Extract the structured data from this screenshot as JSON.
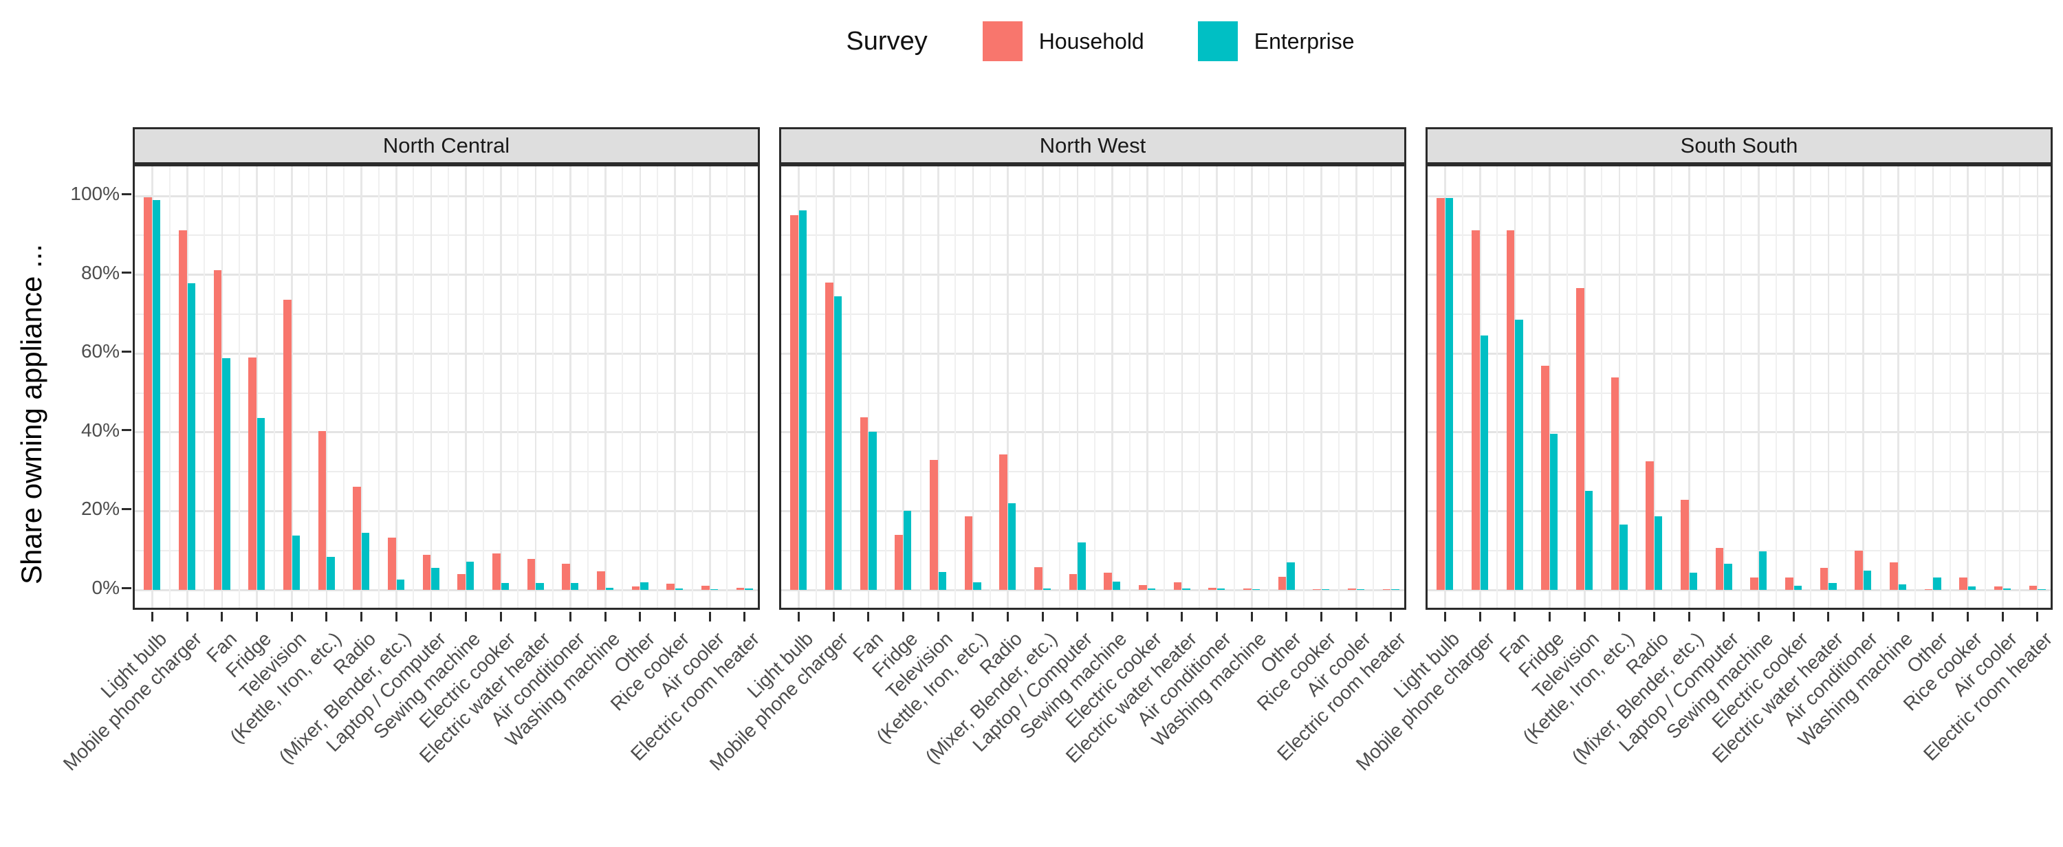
{
  "legend": {
    "title": "Survey",
    "items": [
      {
        "label": "Household",
        "color": "#F8766D"
      },
      {
        "label": "Enterprise",
        "color": "#00BFC4"
      }
    ]
  },
  "y_axis": {
    "title": "Share owning appliance ...",
    "tick_labels": [
      "0%",
      "20%",
      "40%",
      "60%",
      "80%",
      "100%"
    ]
  },
  "colors": {
    "household": "#F8766D",
    "enterprise": "#00BFC4",
    "strip_background": "#DEDEDE",
    "panel_border": "#2b2b2b",
    "gridline": "#e4e4e4",
    "tick_text": "#4d4d4d"
  },
  "chart_data": {
    "type": "bar",
    "grouping": "dodged",
    "grid": "on",
    "legend_position": "top",
    "ylabel": "Share owning appliance ...",
    "ylim": [
      0,
      100
    ],
    "y_tick_values": [
      0,
      20,
      40,
      60,
      80,
      100
    ],
    "y_minor_step": 10,
    "categories": [
      "Light bulb",
      "Mobile phone charger",
      "Fan",
      "Fridge",
      "Television",
      "(Kettle, Iron, etc.)",
      "Radio",
      "(Mixer, Blender, etc.)",
      "Laptop / Computer",
      "Sewing machine",
      "Electric cooker",
      "Electric water heater",
      "Air conditioner",
      "Washing machine",
      "Other",
      "Rice cooker",
      "Air cooler",
      "Electric room heater"
    ],
    "series": [
      {
        "name": "Household",
        "color": "#F8766D"
      },
      {
        "name": "Enterprise",
        "color": "#00BFC4"
      }
    ],
    "facets": [
      {
        "title": "North Central",
        "values": {
          "Household": [
            99.6,
            91.2,
            81.1,
            59.0,
            73.6,
            40.3,
            26.2,
            13.3,
            8.9,
            4.0,
            9.2,
            7.9,
            6.6,
            4.7,
            0.8,
            1.5,
            1.1,
            0.6
          ],
          "Enterprise": [
            99.0,
            77.8,
            58.9,
            43.6,
            13.7,
            8.4,
            14.5,
            2.6,
            5.6,
            7.2,
            1.8,
            1.7,
            1.7,
            0.6,
            1.9,
            0.3,
            0.2,
            0.4
          ]
        }
      },
      {
        "title": "North West",
        "values": {
          "Household": [
            95.1,
            78.0,
            43.8,
            14.0,
            33.0,
            18.6,
            34.4,
            5.8,
            4.0,
            4.3,
            1.2,
            1.9,
            0.6,
            0.4,
            3.4,
            0.2,
            0.3,
            0.2
          ],
          "Enterprise": [
            96.4,
            74.5,
            40.2,
            20.0,
            4.5,
            1.9,
            22.0,
            0.4,
            12.0,
            2.1,
            0.3,
            0.3,
            0.3,
            0.2,
            7.0,
            0.1,
            0.1,
            0.1
          ]
        }
      },
      {
        "title": "South South",
        "values": {
          "Household": [
            99.5,
            91.2,
            91.2,
            56.9,
            76.7,
            54.0,
            32.6,
            22.8,
            10.6,
            3.2,
            3.2,
            5.5,
            10.0,
            6.9,
            0.2,
            3.2,
            0.8,
            1.0
          ],
          "Enterprise": [
            99.5,
            64.5,
            68.5,
            39.7,
            25.2,
            16.6,
            18.7,
            4.4,
            6.6,
            9.8,
            1.0,
            1.7,
            4.8,
            1.4,
            3.2,
            0.9,
            0.3,
            0.1
          ]
        }
      }
    ]
  }
}
